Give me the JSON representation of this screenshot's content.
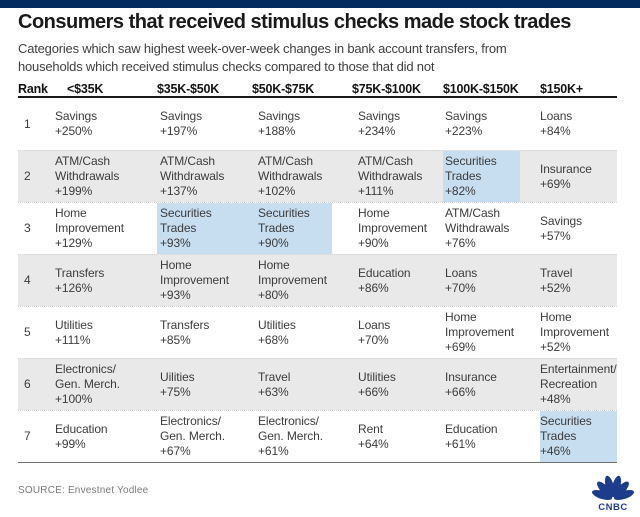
{
  "title": "Consumers that received stimulus checks made stock trades",
  "subtitle": {
    "line1": "Categories which saw highest week-over-week changes in bank account transfers, from",
    "line2": "households which received stimulus checks compared to those that did not"
  },
  "source": "SOURCE: Envestnet Yodlee",
  "logo": {
    "wordmark": "CNBC"
  },
  "colors": {
    "top_bar_navy": "#042b60",
    "highlight_blue": "#c7ddf0",
    "stripe_gray": "#e9e9e9",
    "logo_navy": "#1d3c8c"
  },
  "chart_data": {
    "type": "table",
    "title": "Consumers that received stimulus checks made stock trades",
    "subtitle": "Categories which saw highest week-over-week changes in bank account transfers, from households which received stimulus checks compared to those that did not",
    "columns": [
      "Rank",
      "<$35K",
      "$35K-$50K",
      "$50K-$75K",
      "$75K-$100K",
      "$100K-$150K",
      "$150K+"
    ],
    "highlighted_category": "Securities Trades",
    "rows": [
      {
        "rank": "1",
        "cells": [
          {
            "category": "Savings",
            "pct": "+250%"
          },
          {
            "category": "Savings",
            "pct": "+197%"
          },
          {
            "category": "Savings",
            "pct": "+188%"
          },
          {
            "category": "Savings",
            "pct": "+234%"
          },
          {
            "category": "Savings",
            "pct": "+223%"
          },
          {
            "category": "Loans",
            "pct": "+84%"
          }
        ]
      },
      {
        "rank": "2",
        "cells": [
          {
            "category": "ATM/Cash\nWithdrawals",
            "pct": "+199%"
          },
          {
            "category": "ATM/Cash\nWithdrawals",
            "pct": "+137%"
          },
          {
            "category": "ATM/Cash\nWithdrawals",
            "pct": "+102%"
          },
          {
            "category": "ATM/Cash\nWithdrawals",
            "pct": "+111%"
          },
          {
            "category": "Securities\nTrades",
            "pct": "+82%",
            "hl": true,
            "hl_trim": true
          },
          {
            "category": "Insurance",
            "pct": "+69%"
          }
        ]
      },
      {
        "rank": "3",
        "cells": [
          {
            "category": "Home\nImprovement",
            "pct": "+129%"
          },
          {
            "category": "Securities\nTrades",
            "pct": "+93%",
            "hl": true
          },
          {
            "category": "Securities\nTrades",
            "pct": "+90%",
            "hl": true,
            "hl_trim": true
          },
          {
            "category": "Home\nImprovement",
            "pct": "+90%"
          },
          {
            "category": "ATM/Cash\nWithdrawals",
            "pct": "+76%"
          },
          {
            "category": "Savings",
            "pct": "+57%"
          }
        ]
      },
      {
        "rank": "4",
        "cells": [
          {
            "category": "Transfers",
            "pct": "+126%"
          },
          {
            "category": "Home\nImprovement",
            "pct": "+93%"
          },
          {
            "category": "Home\nImprovement",
            "pct": "+80%"
          },
          {
            "category": "Education",
            "pct": "+86%"
          },
          {
            "category": "Loans",
            "pct": "+70%"
          },
          {
            "category": "Travel",
            "pct": "+52%"
          }
        ]
      },
      {
        "rank": "5",
        "cells": [
          {
            "category": "Utilities",
            "pct": "+111%"
          },
          {
            "category": "Transfers",
            "pct": "+85%"
          },
          {
            "category": "Utilities",
            "pct": "+68%"
          },
          {
            "category": "Loans",
            "pct": "+70%"
          },
          {
            "category": "Home\nImprovement",
            "pct": "+69%"
          },
          {
            "category": "Home\nImprovement",
            "pct": "+52%"
          }
        ]
      },
      {
        "rank": "6",
        "cells": [
          {
            "category": "Electronics/\nGen. Merch.",
            "pct": "+100%"
          },
          {
            "category": "Uilities",
            "pct": "+75%"
          },
          {
            "category": "Travel",
            "pct": "+63%"
          },
          {
            "category": "Utilities",
            "pct": "+66%"
          },
          {
            "category": "Insurance",
            "pct": "+66%"
          },
          {
            "category": "Entertainment/\nRecreation",
            "pct": "+48%"
          }
        ]
      },
      {
        "rank": "7",
        "cells": [
          {
            "category": "Education",
            "pct": "+99%"
          },
          {
            "category": "Electronics/\nGen. Merch.",
            "pct": "+67%"
          },
          {
            "category": "Electronics/\nGen. Merch.",
            "pct": "+61%"
          },
          {
            "category": "Rent",
            "pct": "+64%"
          },
          {
            "category": "Education",
            "pct": "+61%"
          },
          {
            "category": "Securities\nTrades",
            "pct": "+46%",
            "hl": true
          }
        ]
      }
    ]
  }
}
